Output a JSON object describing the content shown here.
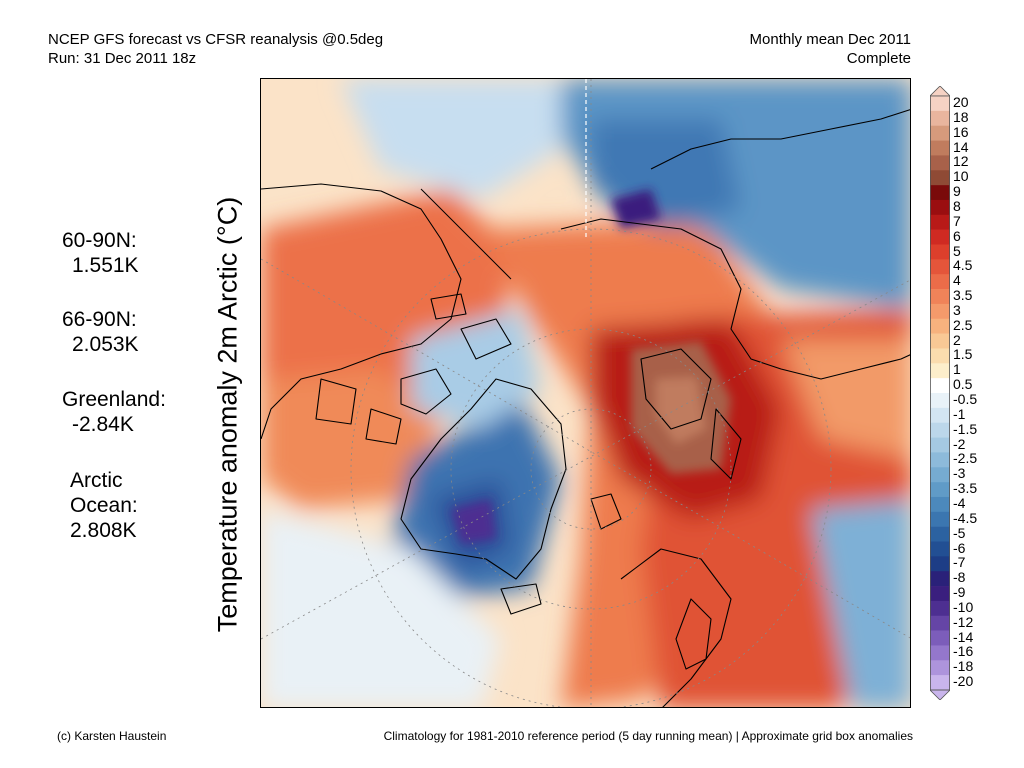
{
  "header": {
    "left_line1": "NCEP GFS forecast vs CFSR reanalysis @0.5deg",
    "left_line2": "Run: 31 Dec 2011 18z",
    "right_line1": "Monthly mean Dec 2011",
    "right_line2": "Complete"
  },
  "stats": [
    {
      "label": "60-90N:",
      "value": "1.551K"
    },
    {
      "label": "66-90N:",
      "value": "2.053K"
    },
    {
      "label": "Greenland:",
      "value": "-2.84K"
    },
    {
      "label_lines": [
        "Arctic",
        "Ocean:"
      ],
      "value": "2.808K"
    }
  ],
  "ylabel": "Temperature anomaly 2m Arctic (°C)",
  "colorbar": {
    "labels": [
      "20",
      "18",
      "16",
      "14",
      "12",
      "10",
      "9",
      "8",
      "7",
      "6",
      "5",
      "4.5",
      "4",
      "3.5",
      "3",
      "2.5",
      "2",
      "1.5",
      "1",
      "0.5",
      "-0.5",
      "-1",
      "-1.5",
      "-2",
      "-2.5",
      "-3",
      "-3.5",
      "-4",
      "-4.5",
      "-5",
      "-6",
      "-7",
      "-8",
      "-9",
      "-10",
      "-12",
      "-14",
      "-16",
      "-18",
      "-20"
    ],
    "colors": [
      "#f6d2c4",
      "#e9b59e",
      "#d69a7c",
      "#c07c5e",
      "#a8614a",
      "#8f4a35",
      "#7a0a0a",
      "#9a0e10",
      "#b81a18",
      "#cf2a22",
      "#dd3f2c",
      "#e4553a",
      "#eb6c49",
      "#f08359",
      "#f49a6b",
      "#f7b27e",
      "#f9c895",
      "#fbdcae",
      "#fdeecb",
      "#ffffff",
      "#e9f2f8",
      "#d3e5f2",
      "#bcd7ea",
      "#a5c9e2",
      "#8dbada",
      "#76abd1",
      "#609bc7",
      "#4c89bc",
      "#3b76b0",
      "#2c62a1",
      "#224f93",
      "#1d3d86",
      "#2a2179",
      "#3a1f7e",
      "#4d2f91",
      "#6545a6",
      "#7c5dba",
      "#9477cc",
      "#ad94dc",
      "#c9b5ec"
    ]
  },
  "footer": {
    "left": "(c) Karsten Haustein",
    "right": "Climatology for 1981-2010 reference period (5 day running mean) | Approximate grid box anomalies"
  }
}
